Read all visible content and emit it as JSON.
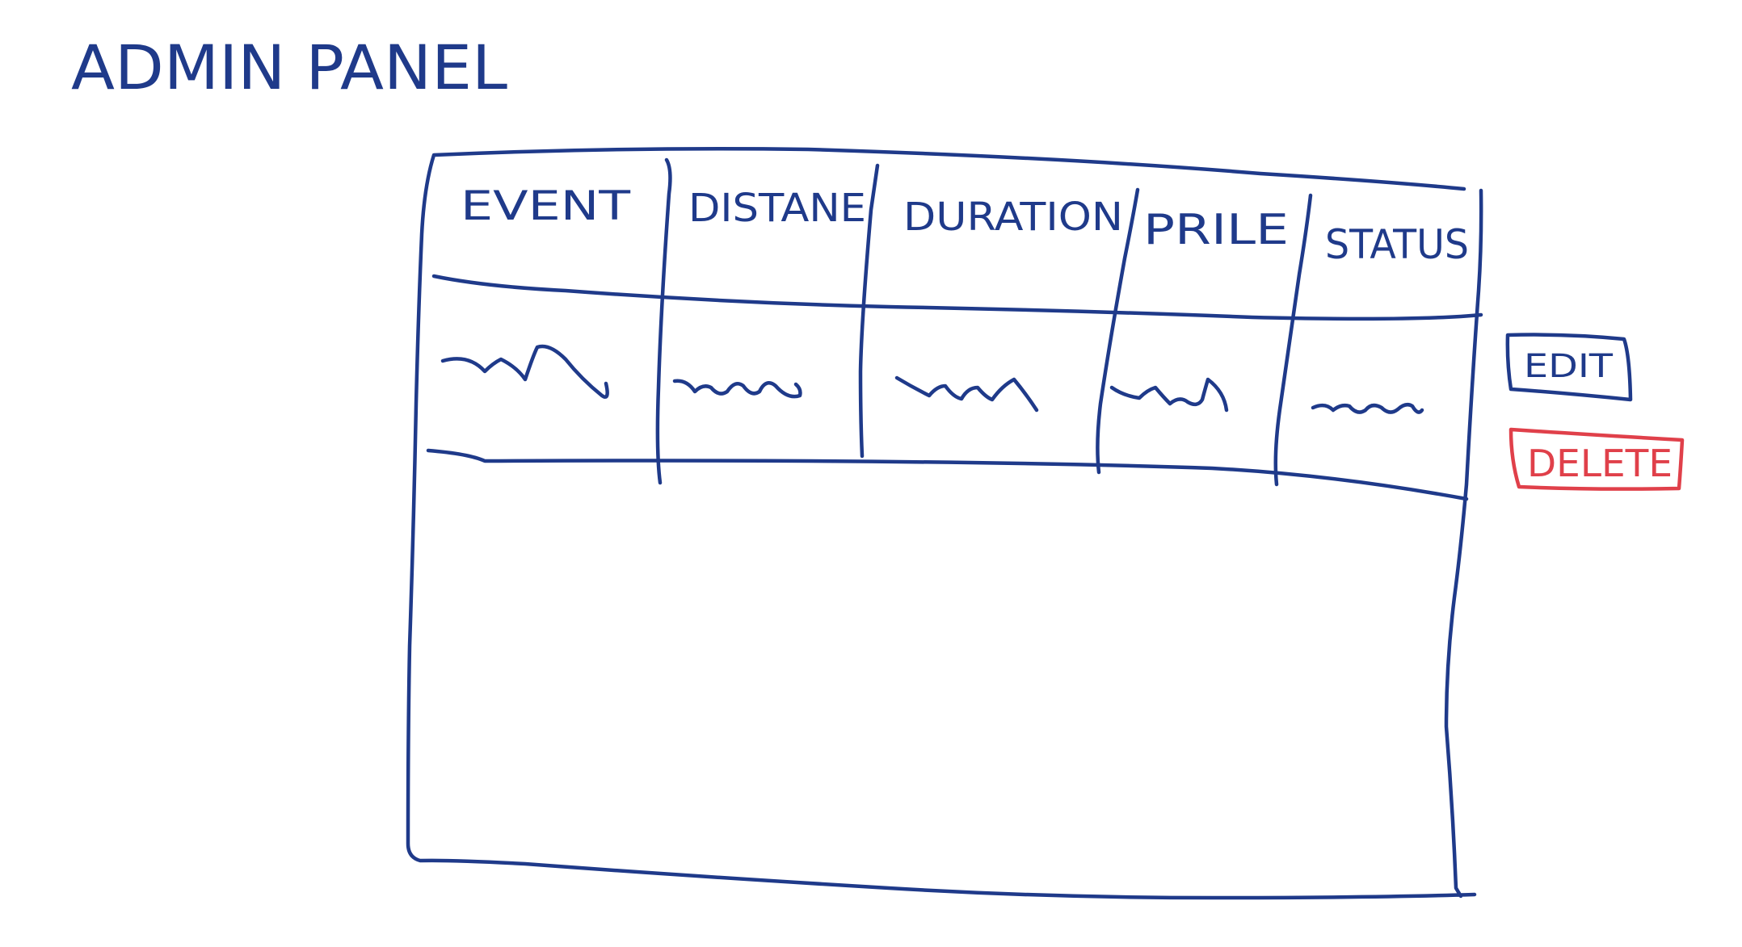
{
  "page": {
    "title": "ADMIN PANEL"
  },
  "table": {
    "columns": [
      {
        "label": "EVENT"
      },
      {
        "label": "DISTANE"
      },
      {
        "label": "DURATION"
      },
      {
        "label": "PRILE"
      },
      {
        "label": "STATUS"
      }
    ],
    "rows": [
      {
        "cells": [
          "placeholder-scribble",
          "placeholder-scribble",
          "placeholder-scribble",
          "placeholder-scribble",
          "placeholder-scribble"
        ]
      }
    ]
  },
  "actions": {
    "edit_label": "EDIT",
    "delete_label": "DELETE"
  },
  "colors": {
    "ink": "#1f3a8a",
    "danger": "#e0404a",
    "background": "#ffffff"
  }
}
